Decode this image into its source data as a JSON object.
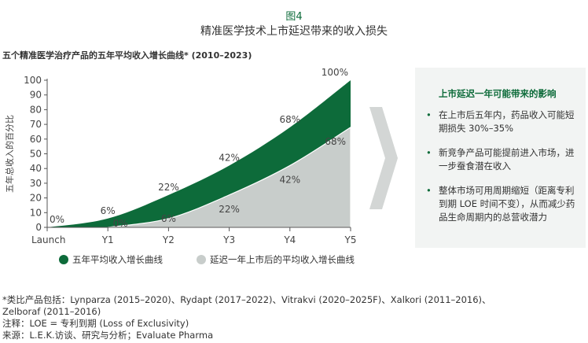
{
  "header": {
    "figure_number": "图4",
    "title": "精准医学技术上市延迟带来的收入损失"
  },
  "subtitle": "五个精准医学治疗产品的五年平均收入增长曲线* (2010–2023)",
  "chart_data": {
    "type": "area",
    "title": "五个精准医学治疗产品的五年平均收入增长曲线* (2010–2023)",
    "xlabel": "",
    "ylabel": "五年总收入的百分比",
    "categories": [
      "Launch",
      "Y1",
      "Y2",
      "Y3",
      "Y4",
      "Y5"
    ],
    "ylim": [
      0,
      100
    ],
    "yticks": [
      0,
      10,
      20,
      30,
      40,
      50,
      60,
      70,
      80,
      90,
      100
    ],
    "grid": false,
    "legend_position": "bottom",
    "series": [
      {
        "name": "五年平均收入增长曲线",
        "color": "#0d6b3a",
        "values": [
          0,
          6,
          22,
          42,
          68,
          100
        ],
        "labels": [
          "0%",
          "6%",
          "22%",
          "42%",
          "68%",
          "100%"
        ]
      },
      {
        "name": "延迟一年上市后的平均收入增长曲线",
        "color": "#c8cdcb",
        "values": [
          null,
          0,
          6,
          22,
          42,
          68
        ],
        "labels": [
          "",
          "0%",
          "6%",
          "22%",
          "42%",
          "68%"
        ]
      }
    ]
  },
  "panel": {
    "title": "上市延迟一年可能带来的影响",
    "bullets": [
      "在上市后五年内，药品收入可能短期损失 30%–35%",
      "新竞争产品可能提前进入市场，进一步蚕食潜在收入",
      "整体市场可用周期缩短（距离专利到期 LOE 时间不变），从而减少药品生命周期内的总营收潜力"
    ]
  },
  "notes": [
    "*类比产品包括：Lynparza (2015–2020)、Rydapt (2017–2022)、Vitrakvi (2020–2025F)、Xalkori (2011–2016)、",
    "Zelboraf (2011–2016)",
    "注释：LOE = 专利到期 (Loss of Exclusivity)",
    "来源：L.E.K.访谈、研究与分析；Evaluate Pharma"
  ]
}
